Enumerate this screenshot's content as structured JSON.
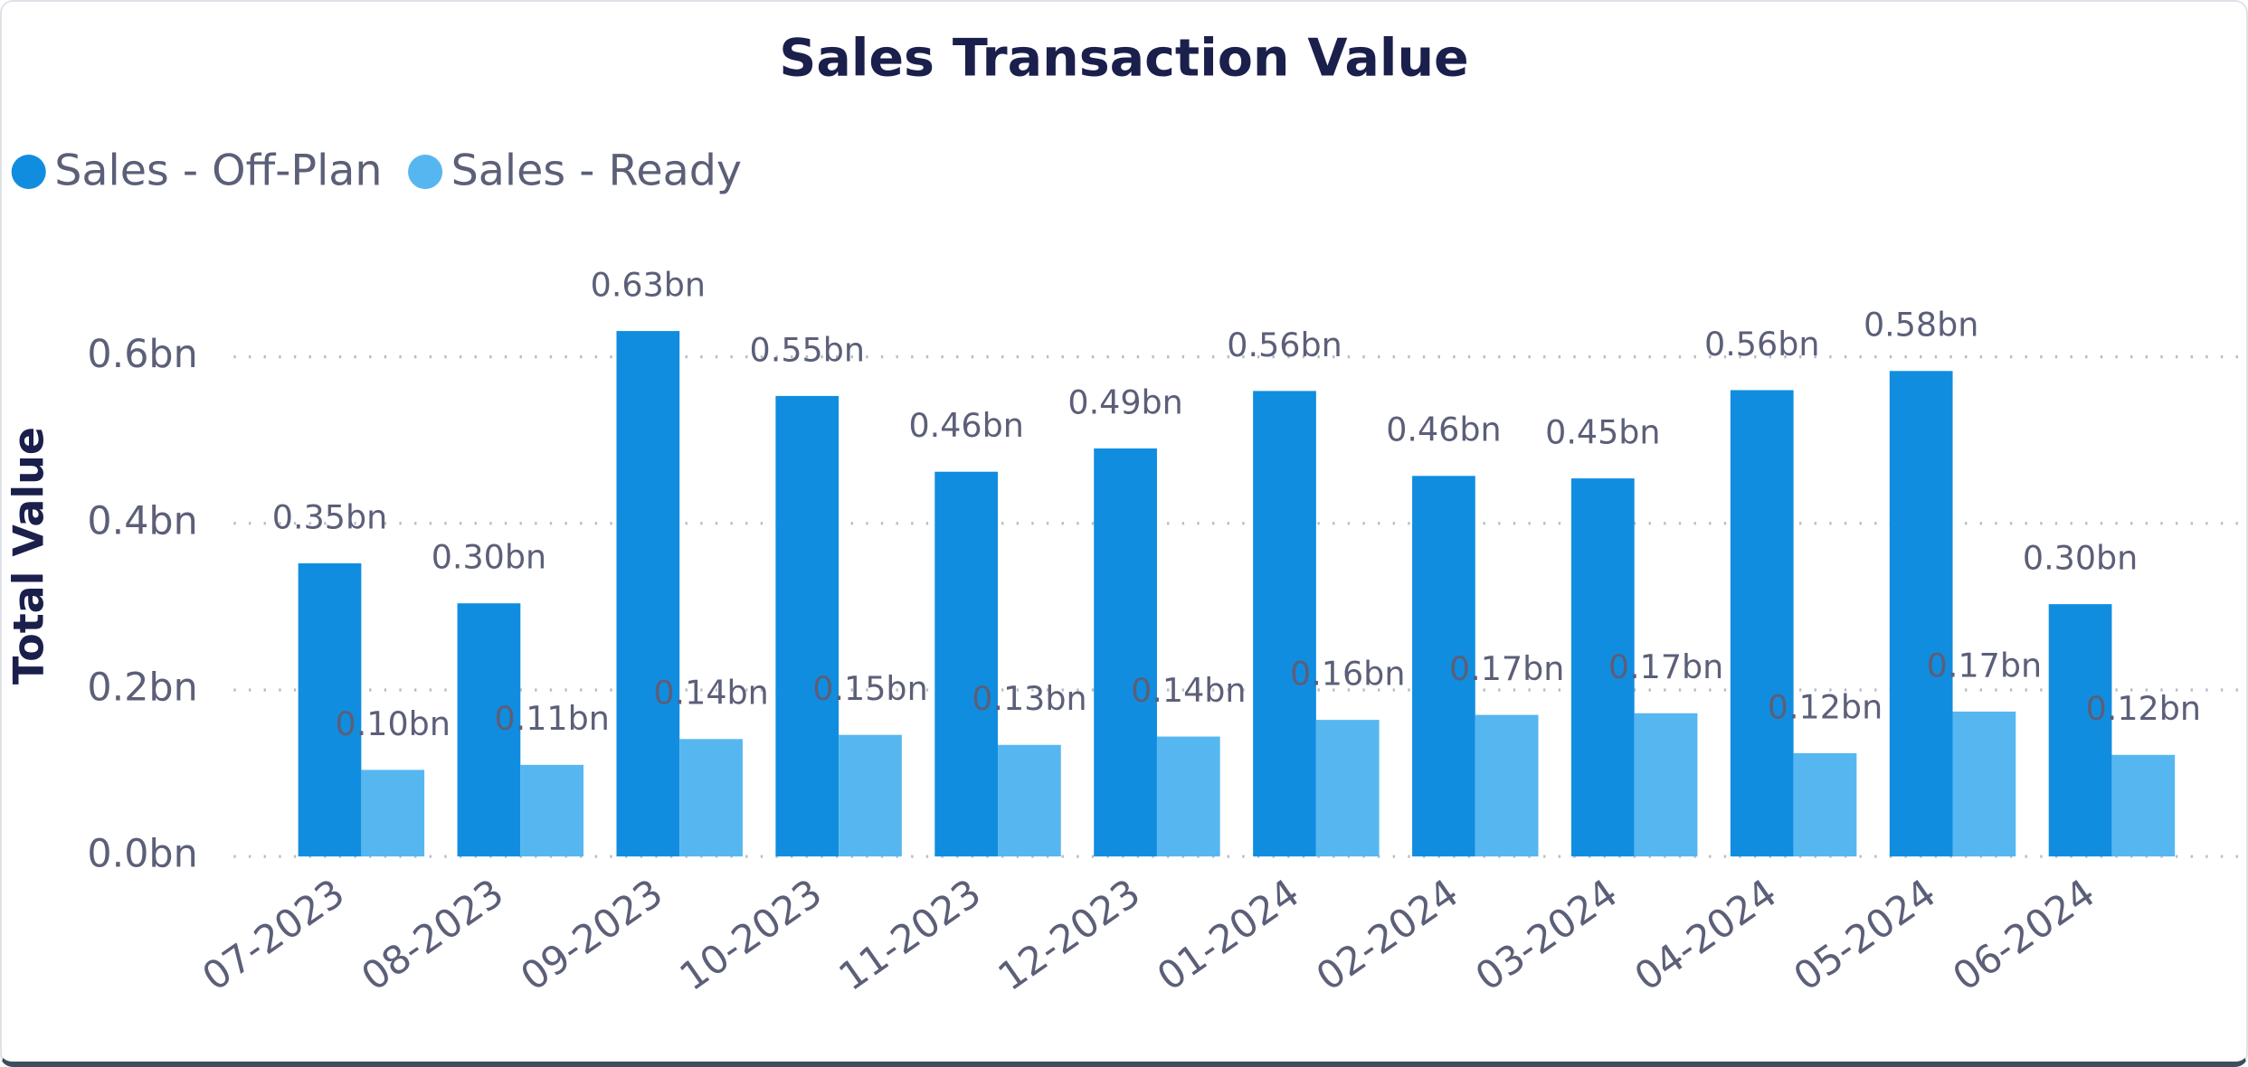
{
  "chart_data": {
    "type": "bar",
    "title": "Sales Transaction Value",
    "y_label": "Total Value",
    "categories": [
      "07-2023",
      "08-2023",
      "09-2023",
      "10-2023",
      "11-2023",
      "12-2023",
      "01-2024",
      "02-2024",
      "03-2024",
      "04-2024",
      "05-2024",
      "06-2024"
    ],
    "series": [
      {
        "name": "Sales - Off-Plan",
        "color": "#118de0",
        "values": [
          0.352,
          0.304,
          0.631,
          0.553,
          0.462,
          0.49,
          0.559,
          0.457,
          0.454,
          0.56,
          0.583,
          0.303
        ],
        "value_labels": [
          "0.35bn",
          "0.30bn",
          "0.63bn",
          "0.55bn",
          "0.46bn",
          "0.49bn",
          "0.56bn",
          "0.46bn",
          "0.45bn",
          "0.56bn",
          "0.58bn",
          "0.30bn"
        ]
      },
      {
        "name": "Sales - Ready",
        "color": "#56b7f0",
        "values": [
          0.104,
          0.11,
          0.141,
          0.146,
          0.134,
          0.144,
          0.164,
          0.17,
          0.172,
          0.124,
          0.174,
          0.122
        ],
        "value_labels": [
          "0.10bn",
          "0.11bn",
          "0.14bn",
          "0.15bn",
          "0.13bn",
          "0.14bn",
          "0.16bn",
          "0.17bn",
          "0.17bn",
          "0.12bn",
          "0.17bn",
          "0.12bn"
        ]
      }
    ],
    "ylim": [
      0,
      0.7
    ],
    "yticks": [
      {
        "value": 0,
        "label": "0.0bn"
      },
      {
        "value": 0.2,
        "label": "0.2bn"
      },
      {
        "value": 0.4,
        "label": "0.4bn"
      },
      {
        "value": 0.6,
        "label": "0.6bn"
      }
    ],
    "grid": true,
    "legend": "top-left"
  }
}
